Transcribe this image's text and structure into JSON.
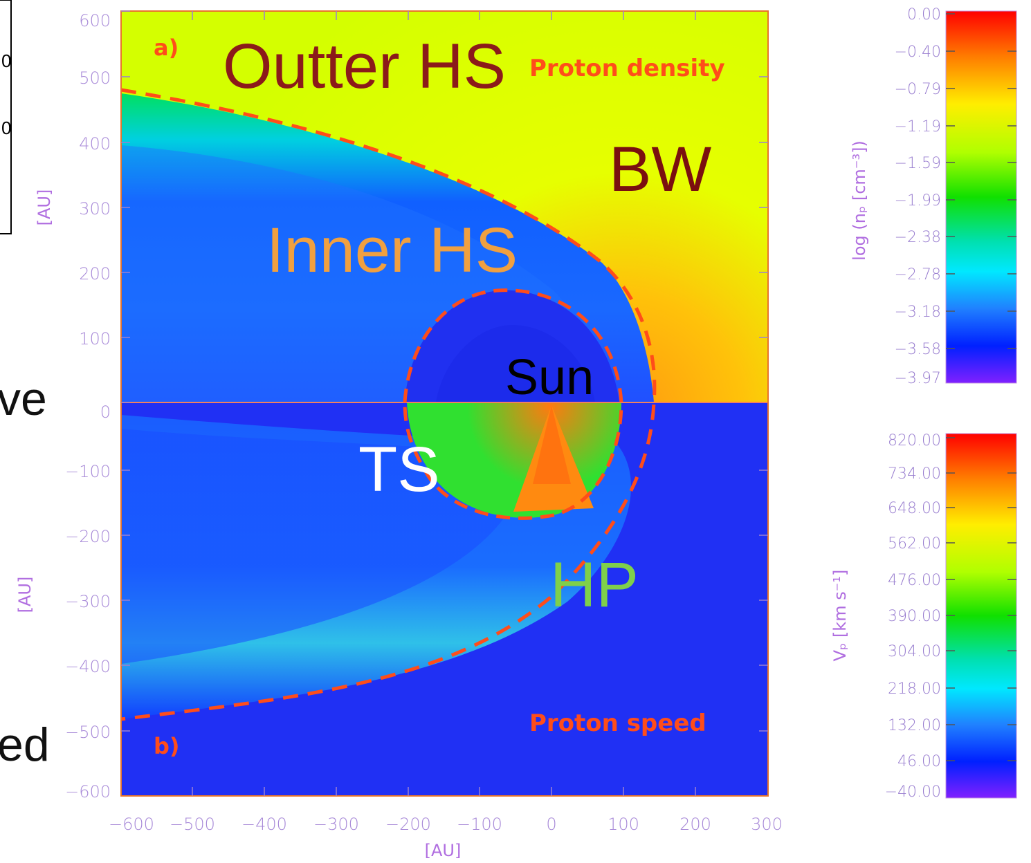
{
  "figure": {
    "panel_a": {
      "letter": "a)",
      "quantity": "Proton density",
      "region_labels": {
        "outer_hs": "Outter HS",
        "inner_hs": "Inner HS",
        "bw": "BW",
        "sun": "Sun"
      }
    },
    "panel_b": {
      "letter": "b)",
      "quantity": "Proton speed",
      "region_labels": {
        "ts": "TS",
        "hp": "HP"
      }
    },
    "x_axis": {
      "title": "[AU]",
      "ticks": [
        "−600",
        "−500",
        "−400",
        "−300",
        "−200",
        "−100",
        "0",
        "100",
        "200",
        "300"
      ]
    },
    "y_axis_top": {
      "title": "[AU]",
      "ticks": [
        "600",
        "500",
        "400",
        "300",
        "200",
        "100",
        "0"
      ]
    },
    "y_axis_bottom": {
      "title": "[AU]",
      "ticks": [
        "−100",
        "−200",
        "−300",
        "−400",
        "−500",
        "−600"
      ]
    },
    "colorbar_density": {
      "title": "log (nₚ [cm⁻³])",
      "ticks": [
        "0.00",
        "−0.40",
        "−0.79",
        "−1.19",
        "−1.59",
        "−1.99",
        "−2.38",
        "−2.78",
        "−3.18",
        "−3.58",
        "−3.97"
      ]
    },
    "colorbar_speed": {
      "title": "Vₚ [km s⁻¹]",
      "ticks": [
        "820.00",
        "734.00",
        "648.00",
        "562.00",
        "476.00",
        "390.00",
        "304.00",
        "218.00",
        "132.00",
        "46.00",
        "−40.00"
      ]
    },
    "cropped_left_text": {
      "line1": "ve",
      "line2": "ed",
      "tick1": "0",
      "tick2": "0"
    },
    "colors": {
      "boundary_dash": "#ff4d1a",
      "axis_frame": "#e8742a",
      "label_dark_red": "#8b1a1a",
      "label_orange": "#f0a040",
      "label_green": "#7fd04a",
      "label_orange_red": "#ff5a1a",
      "tick_purple": "#a88ad8"
    }
  }
}
